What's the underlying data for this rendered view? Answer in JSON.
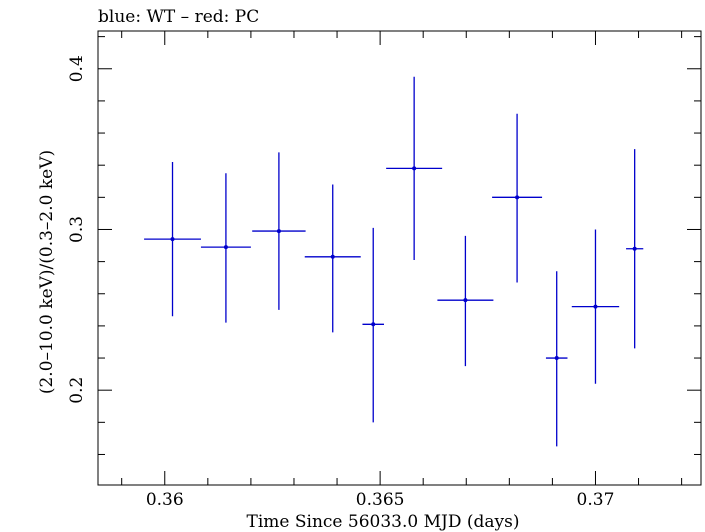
{
  "chart_data": {
    "type": "scatter",
    "title": "blue: WT – red: PC",
    "xlabel": "Time Since 56033.0 MJD (days)",
    "ylabel": "(2.0–10.0 keV)/(0.3–2.0 keV)",
    "xlim": [
      0.35845,
      0.37245
    ],
    "ylim": [
      0.141,
      0.4235
    ],
    "x_ticks": [
      0.36,
      0.365,
      0.37
    ],
    "x_tick_labels": [
      "0.36",
      "0.365",
      "0.37"
    ],
    "y_ticks": [
      0.2,
      0.3,
      0.4
    ],
    "y_tick_labels": [
      "0.2",
      "0.3",
      "0.4"
    ],
    "grid": false,
    "series": [
      {
        "color": "#0000cc",
        "points": [
          {
            "x": 0.36018,
            "xerr": 0.00066,
            "y": 0.294,
            "ylo": 0.246,
            "yhi": 0.342
          },
          {
            "x": 0.36142,
            "xerr": 0.00058,
            "y": 0.289,
            "ylo": 0.242,
            "yhi": 0.335
          },
          {
            "x": 0.36265,
            "xerr": 0.00062,
            "y": 0.299,
            "ylo": 0.25,
            "yhi": 0.348
          },
          {
            "x": 0.3639,
            "xerr": 0.00065,
            "y": 0.283,
            "ylo": 0.236,
            "yhi": 0.328
          },
          {
            "x": 0.36484,
            "xerr": 0.00025,
            "y": 0.241,
            "ylo": 0.18,
            "yhi": 0.301
          },
          {
            "x": 0.36579,
            "xerr": 0.00065,
            "y": 0.338,
            "ylo": 0.281,
            "yhi": 0.395
          },
          {
            "x": 0.36698,
            "xerr": 0.00065,
            "y": 0.256,
            "ylo": 0.215,
            "yhi": 0.296
          },
          {
            "x": 0.36818,
            "xerr": 0.00058,
            "y": 0.32,
            "ylo": 0.267,
            "yhi": 0.372
          },
          {
            "x": 0.3691,
            "xerr": 0.00025,
            "y": 0.22,
            "ylo": 0.165,
            "yhi": 0.274
          },
          {
            "x": 0.37,
            "xerr": 0.00055,
            "y": 0.252,
            "ylo": 0.204,
            "yhi": 0.3
          },
          {
            "x": 0.37091,
            "xerr": 0.0002,
            "y": 0.288,
            "ylo": 0.226,
            "yhi": 0.35
          }
        ]
      }
    ]
  }
}
